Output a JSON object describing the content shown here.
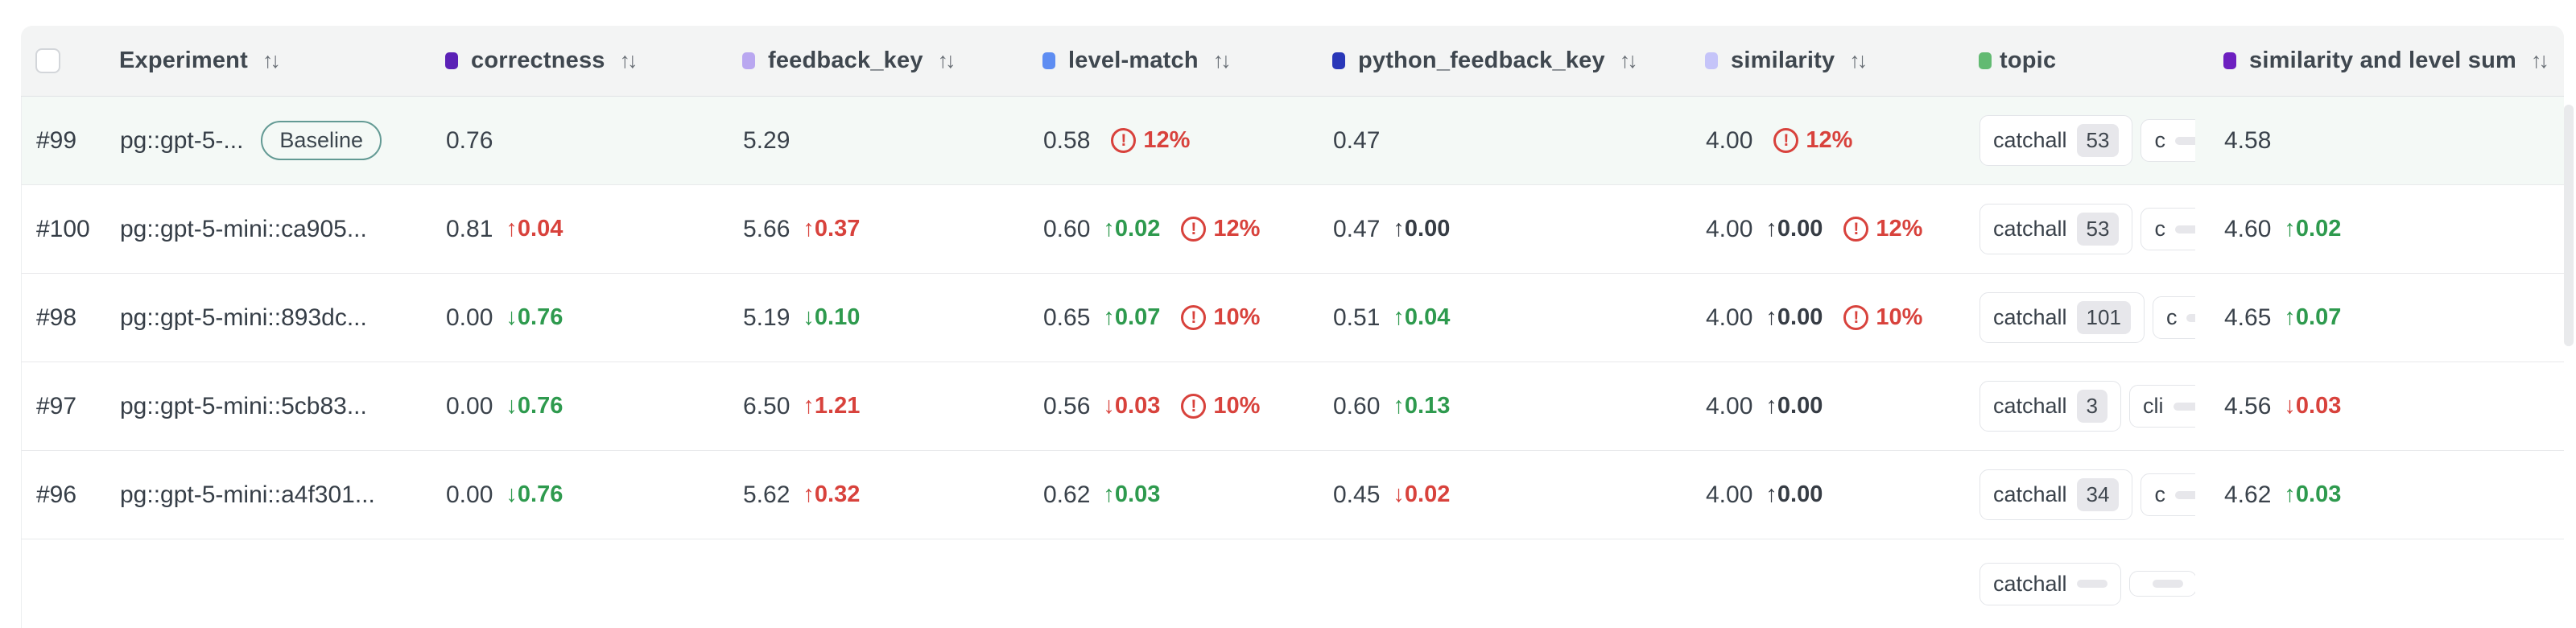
{
  "colors": {
    "header_bg": "#f3f4f4",
    "baseline_row_bg": "#f4f9f6",
    "positive_green": "#2e9a4e",
    "negative_red": "#d8423c",
    "warning_red": "#d8423c",
    "baseline_badge_border": "#639a94",
    "dot_correctness": "#5b21b6",
    "dot_feedback_key": "#b9a7f0",
    "dot_level_match": "#5e8df2",
    "dot_python_feedback_key": "#2937b8",
    "dot_similarity": "#c5c4f9",
    "dot_topic": "#62ba72",
    "dot_similarity_level_sum": "#6d1fc0"
  },
  "header": {
    "sort_icon": "↑↓",
    "experiment": {
      "label": "Experiment"
    },
    "columns": {
      "correctness": {
        "label": "correctness"
      },
      "feedback_key": {
        "label": "feedback_key"
      },
      "level_match": {
        "label": "level-match"
      },
      "python_feedback_key": {
        "label": "python_feedback_key"
      },
      "similarity": {
        "label": "similarity"
      },
      "topic": {
        "label": "topic"
      },
      "similarity_level_sum": {
        "label": "similarity and level sum"
      }
    }
  },
  "rows": [
    {
      "id": "#99",
      "experiment": "pg::gpt-5-...",
      "badge": "Baseline",
      "correctness": {
        "value": "0.76"
      },
      "feedback_key": {
        "value": "5.29"
      },
      "level_match": {
        "value": "0.58",
        "warn": "12%"
      },
      "python_feedback_key": {
        "value": "0.47"
      },
      "similarity": {
        "value": "4.00",
        "warn": "12%"
      },
      "topics": [
        {
          "label": "catchall",
          "count": "53"
        },
        {
          "label": "c",
          "count": ""
        }
      ],
      "sum": {
        "value": "4.58"
      }
    },
    {
      "id": "#100",
      "experiment": "pg::gpt-5-mini::ca905...",
      "correctness": {
        "value": "0.81",
        "delta": "↑0.04",
        "trend": "worse"
      },
      "feedback_key": {
        "value": "5.66",
        "delta": "↑0.37",
        "trend": "worse"
      },
      "level_match": {
        "value": "0.60",
        "delta": "↑0.02",
        "trend": "better",
        "warn": "12%"
      },
      "python_feedback_key": {
        "value": "0.47",
        "delta": "↑0.00",
        "trend": "even"
      },
      "similarity": {
        "value": "4.00",
        "delta": "↑0.00",
        "trend": "even",
        "warn": "12%"
      },
      "topics": [
        {
          "label": "catchall",
          "count": "53"
        },
        {
          "label": "c",
          "count": ""
        }
      ],
      "sum": {
        "value": "4.60",
        "delta": "↑0.02",
        "trend": "better"
      }
    },
    {
      "id": "#98",
      "experiment": "pg::gpt-5-mini::893dc...",
      "correctness": {
        "value": "0.00",
        "delta": "↓0.76",
        "trend": "better"
      },
      "feedback_key": {
        "value": "5.19",
        "delta": "↓0.10",
        "trend": "better"
      },
      "level_match": {
        "value": "0.65",
        "delta": "↑0.07",
        "trend": "better",
        "warn": "10%"
      },
      "python_feedback_key": {
        "value": "0.51",
        "delta": "↑0.04",
        "trend": "better"
      },
      "similarity": {
        "value": "4.00",
        "delta": "↑0.00",
        "trend": "even",
        "warn": "10%"
      },
      "topics": [
        {
          "label": "catchall",
          "count": "101"
        },
        {
          "label": "c",
          "count": ""
        }
      ],
      "sum": {
        "value": "4.65",
        "delta": "↑0.07",
        "trend": "better"
      }
    },
    {
      "id": "#97",
      "experiment": "pg::gpt-5-mini::5cb83...",
      "correctness": {
        "value": "0.00",
        "delta": "↓0.76",
        "trend": "better"
      },
      "feedback_key": {
        "value": "6.50",
        "delta": "↑1.21",
        "trend": "worse"
      },
      "level_match": {
        "value": "0.56",
        "delta": "↓0.03",
        "trend": "worse",
        "warn": "10%"
      },
      "python_feedback_key": {
        "value": "0.60",
        "delta": "↑0.13",
        "trend": "better"
      },
      "similarity": {
        "value": "4.00",
        "delta": "↑0.00",
        "trend": "even"
      },
      "topics": [
        {
          "label": "catchall",
          "count": "3"
        },
        {
          "label": "cli",
          "count": ""
        }
      ],
      "sum": {
        "value": "4.56",
        "delta": "↓0.03",
        "trend": "worse"
      }
    },
    {
      "id": "#96",
      "experiment": "pg::gpt-5-mini::a4f301...",
      "correctness": {
        "value": "0.00",
        "delta": "↓0.76",
        "trend": "better"
      },
      "feedback_key": {
        "value": "5.62",
        "delta": "↑0.32",
        "trend": "worse"
      },
      "level_match": {
        "value": "0.62",
        "delta": "↑0.03",
        "trend": "better"
      },
      "python_feedback_key": {
        "value": "0.45",
        "delta": "↓0.02",
        "trend": "worse"
      },
      "similarity": {
        "value": "4.00",
        "delta": "↑0.00",
        "trend": "even"
      },
      "topics": [
        {
          "label": "catchall",
          "count": "34"
        },
        {
          "label": "c",
          "count": ""
        }
      ],
      "sum": {
        "value": "4.62",
        "delta": "↑0.03",
        "trend": "better"
      }
    },
    {
      "id": "",
      "experiment": "",
      "topics": [
        {
          "label": "catchall",
          "count": ""
        },
        {
          "label": "",
          "count": ""
        }
      ]
    }
  ]
}
